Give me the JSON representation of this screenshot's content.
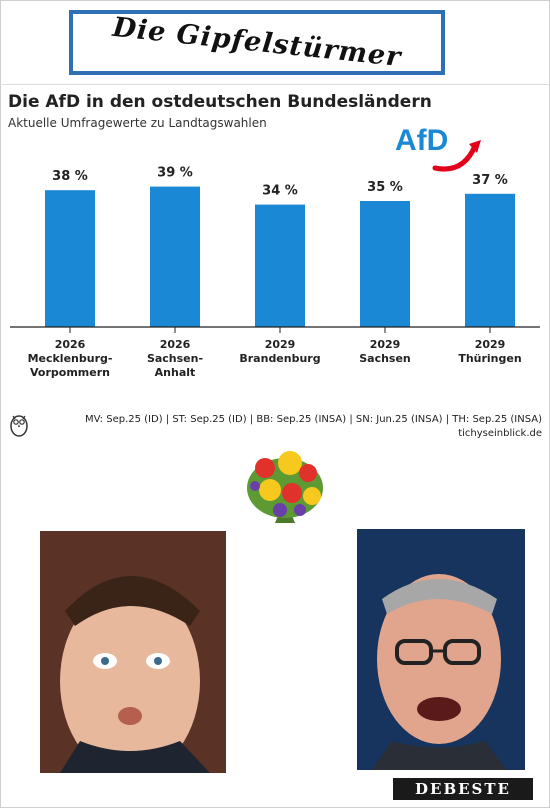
{
  "banner": {
    "text": "Die Gipfelstürmer"
  },
  "header": {
    "title": "Die AfD in den ostdeutschen Bundesländern",
    "subtitle": "Aktuelle Umfragewerte zu Landtagswahlen",
    "logo_text": "AfD"
  },
  "colors": {
    "bar": "#1a88d4",
    "afd_blue": "#1a88d4",
    "afd_red": "#e3001b",
    "axis": "#222222"
  },
  "chart_data": {
    "type": "bar",
    "title": "Die AfD in den ostdeutschen Bundesländern",
    "subtitle": "Aktuelle Umfragewerte zu Landtagswahlen",
    "categories": [
      [
        "2026",
        "Mecklenburg-",
        "Vorpommern"
      ],
      [
        "2026",
        "Sachsen-",
        "Anhalt"
      ],
      [
        "2029",
        "Brandenburg"
      ],
      [
        "2029",
        "Sachsen"
      ],
      [
        "2029",
        "Thüringen"
      ]
    ],
    "values": [
      38,
      39,
      34,
      35,
      37
    ],
    "value_labels": [
      "38 %",
      "39 %",
      "34 %",
      "35 %",
      "37 %"
    ],
    "ylim": [
      0,
      45
    ],
    "grid": false,
    "legend": "none",
    "xlabel": "",
    "ylabel": ""
  },
  "footer": {
    "source": "MV: Sep.25 (ID) | ST: Sep.25 (ID) | BB: Sep.25 (INSA) | SN: Jun.25 (INSA) | TH: Sep.25 (INSA)",
    "site": "tichyseinblick.de"
  },
  "watermark": {
    "text": "DEBESTE"
  },
  "images": {
    "owl": "owl-logo-icon",
    "flowers": "flower-bouquet",
    "left_photo": "man-photo-left",
    "right_photo": "man-photo-right"
  }
}
